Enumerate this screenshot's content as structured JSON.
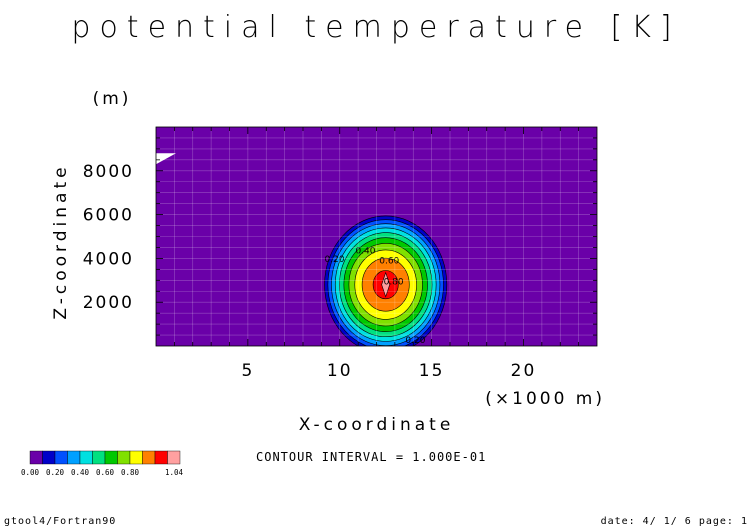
{
  "chart_data": {
    "type": "contour",
    "title": "potential temperature [K]",
    "xlabel": "X-coordinate",
    "xunit": "(×1000 m)",
    "ylabel": "Z-coordinate",
    "yunit": "(m)",
    "xlim": [
      0,
      24
    ],
    "ylim": [
      0,
      10000
    ],
    "xticks": [
      5,
      10,
      15,
      20
    ],
    "yticks": [
      2000,
      4000,
      6000,
      8000
    ],
    "grid": true,
    "contour_interval_text": "CONTOUR INTERVAL = 1.000E-01",
    "center": {
      "x": 12.5,
      "z": 2800
    },
    "radius": {
      "x": 3.5,
      "z": 3300
    },
    "peak_value": 1.04,
    "levels": [
      0.0,
      0.1,
      0.2,
      0.3,
      0.4,
      0.5,
      0.6,
      0.7,
      0.8,
      0.9,
      1.0
    ],
    "contour_labels": [
      {
        "text": "0.20",
        "level": 0.2
      },
      {
        "text": "0.40",
        "level": 0.4
      },
      {
        "text": "0.60",
        "level": 0.6
      },
      {
        "text": "0.80",
        "level": 0.8
      },
      {
        "text": "0.20",
        "level": 0.2
      }
    ],
    "colorbar": {
      "labels": [
        "0.00",
        "0.20",
        "0.40",
        "0.60",
        "0.80",
        "1.04"
      ],
      "colors": [
        "#6a00a8",
        "#0000c8",
        "#0050ff",
        "#00a0ff",
        "#00e0e0",
        "#00e080",
        "#00c800",
        "#80e000",
        "#ffff00",
        "#ff8000",
        "#ff0000",
        "#ffa0a0"
      ]
    }
  },
  "footer": {
    "left": "gtool4/Fortran90",
    "right": "date: 4/ 1/ 6 page: 1"
  }
}
